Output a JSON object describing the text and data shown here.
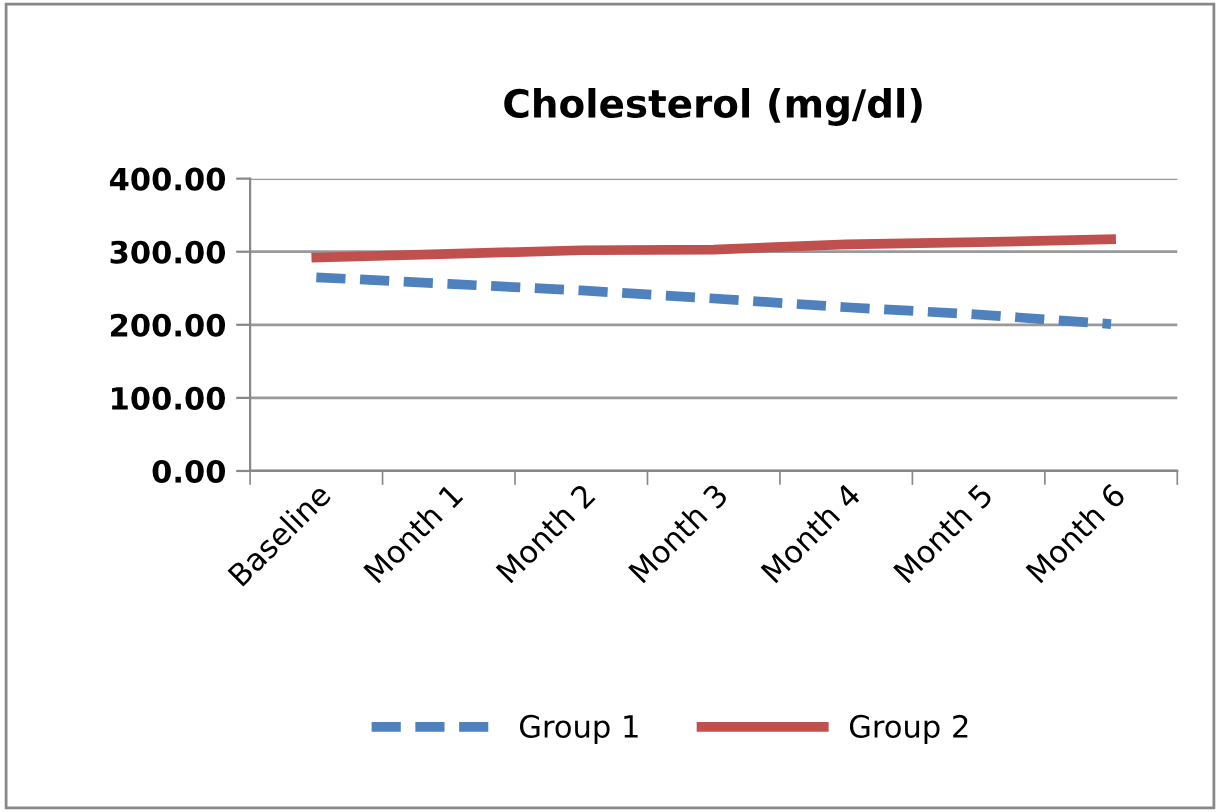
{
  "chart_data": {
    "type": "line",
    "title": "Cholesterol (mg/dl)",
    "categories": [
      "Baseline",
      "Month 1",
      "Month 2",
      "Month 3",
      "Month 4",
      "Month 5",
      "Month 6"
    ],
    "series": [
      {
        "name": "Group 1",
        "color": "#4f81bd",
        "line_style": "dashed",
        "values": [
          265,
          256,
          247,
          236,
          224,
          214,
          201
        ]
      },
      {
        "name": "Group 2",
        "color": "#c0504d",
        "line_style": "solid",
        "values": [
          292,
          297,
          302,
          303,
          310,
          313,
          317
        ]
      }
    ],
    "ylim": [
      0,
      400
    ],
    "yticks": [
      {
        "value": 0,
        "label": "0.00"
      },
      {
        "value": 100,
        "label": "100.00"
      },
      {
        "value": 200,
        "label": "200.00"
      },
      {
        "value": 300,
        "label": "300.00"
      },
      {
        "value": 400,
        "label": "400.00"
      }
    ],
    "grid": "y",
    "legend": "bottom",
    "marker": "none"
  }
}
